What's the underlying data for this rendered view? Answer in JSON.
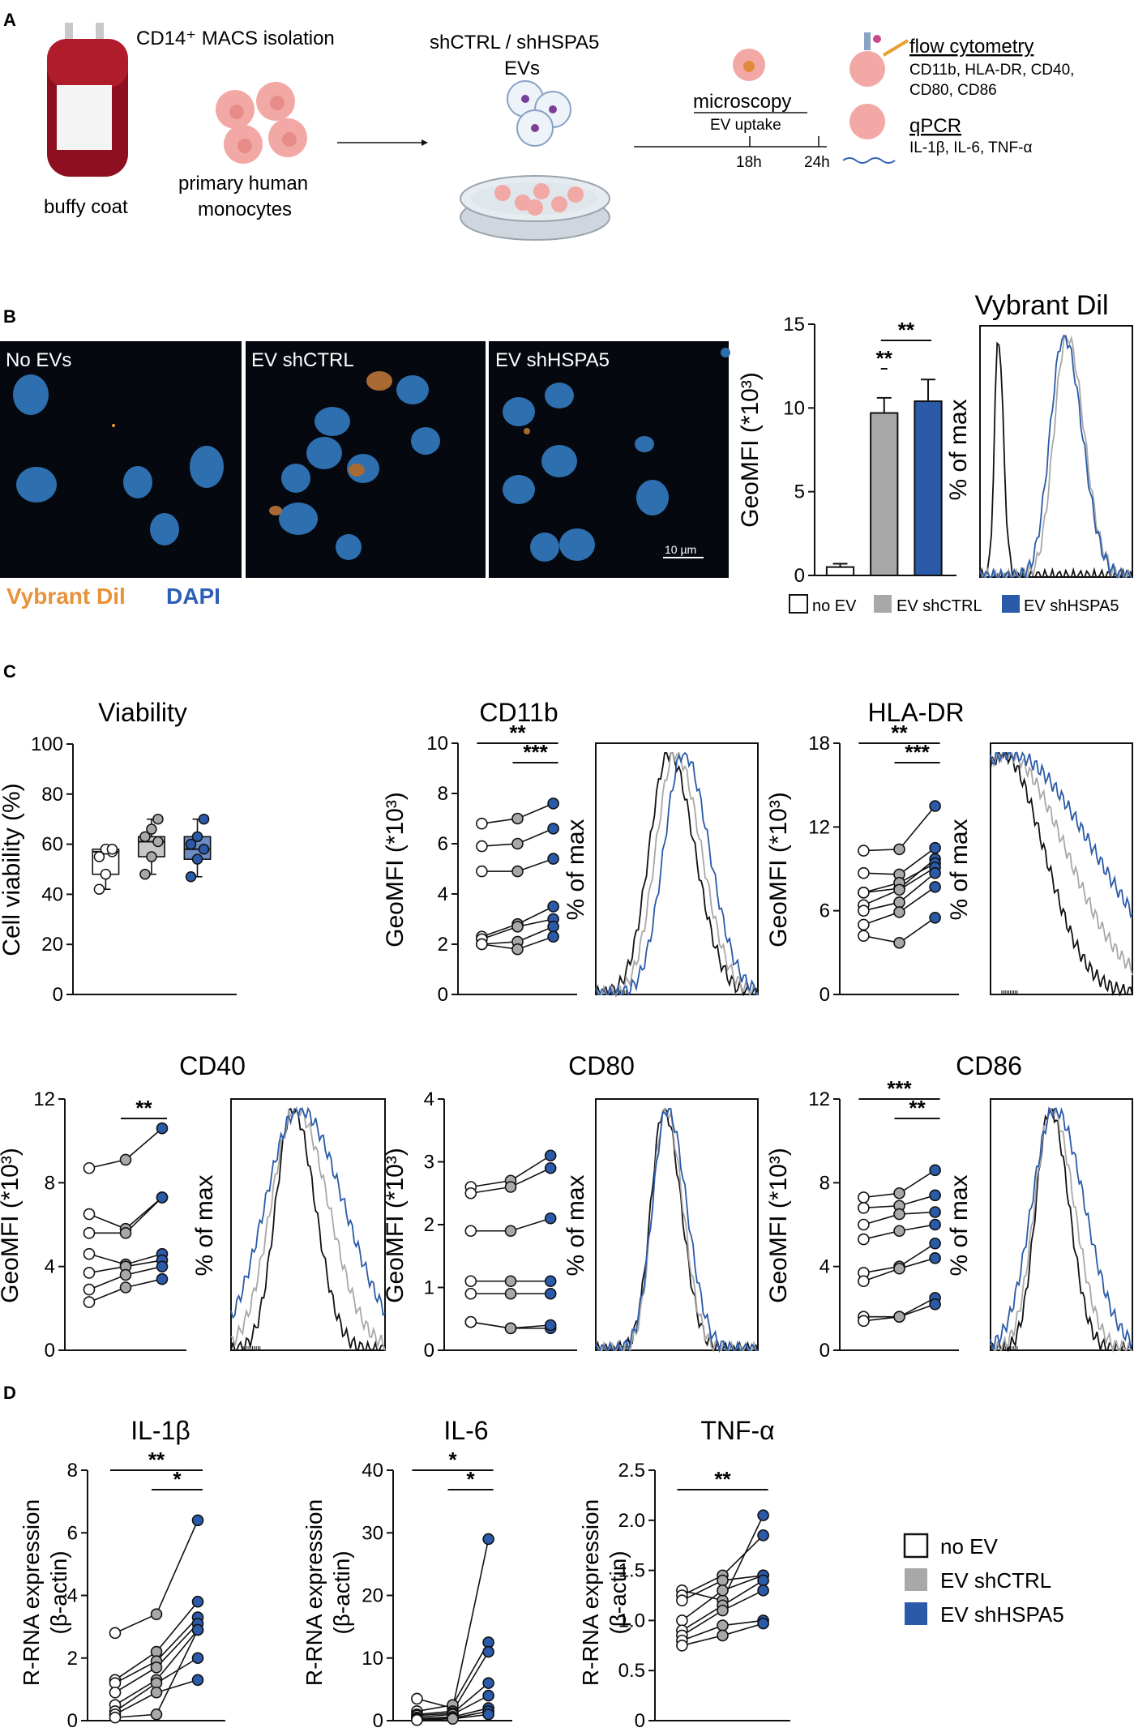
{
  "panel_letters": [
    "A",
    "B",
    "C",
    "D"
  ],
  "colors": {
    "no_ev": "#ffffff",
    "ev_shctrl": "#a8a8a8",
    "ev_shhspa5": "#2a5aa8",
    "vybrant": "#e8923a",
    "dapi": "#2d5fb4",
    "line": "#111111"
  },
  "schematic": {
    "isolation_label": "CD14⁺ MACS isolation",
    "bag_label": "buffy coat",
    "cells_label_1": "primary human",
    "cells_label_2": "monocytes",
    "ev_label_1": "shCTRL / shHSPA5",
    "ev_label_2": "EVs",
    "microscopy": "microscopy",
    "uptake": "EV uptake",
    "t18": "18h",
    "t24": "24h",
    "flow_title": "flow cytometry",
    "flow_markers_1": "CD11b, HLA-DR, CD40,",
    "flow_markers_2": "CD80, CD86",
    "qpcr_title": "qPCR",
    "qpcr_markers": "IL-1β, IL-6, TNF-α"
  },
  "micrographs": {
    "labels": [
      "No EVs",
      "EV shCTRL",
      "EV shHSPA5"
    ],
    "scale_bar": "10 µm",
    "stain_1": "Vybrant Dil",
    "stain_2": "DAPI"
  },
  "legend_b": [
    "no EV",
    "EV shCTRL",
    "EV shHSPA5"
  ],
  "legend_d": [
    "no EV",
    "EV shCTRL",
    "EV shHSPA5"
  ],
  "chart_data": [
    {
      "id": "vybrant_bar",
      "type": "bar",
      "title": "Vybrant Dil",
      "ylabel": "GeoMFI (*10³)",
      "categories": [
        "no EV",
        "EV shCTRL",
        "EV shHSPA5"
      ],
      "values": [
        0.5,
        9.7,
        10.4
      ],
      "errors": [
        0.2,
        0.9,
        1.3
      ],
      "ylim": [
        0,
        15
      ],
      "yticks": [
        0,
        5,
        10,
        15
      ],
      "significance": [
        {
          "from": 1,
          "to": 2,
          "label": "**",
          "level": 1
        },
        {
          "from": 1,
          "to": 3,
          "label": "**",
          "level": 2
        }
      ]
    },
    {
      "id": "vybrant_hist",
      "type": "area",
      "ylabel": "% of max",
      "series": [
        {
          "name": "no EV",
          "peak": 0.12,
          "width": 0.025
        },
        {
          "name": "EV shCTRL",
          "peak": 0.57,
          "width": 0.085
        },
        {
          "name": "EV shHSPA5",
          "peak": 0.55,
          "width": 0.09
        }
      ]
    },
    {
      "id": "viability",
      "type": "box",
      "title": "Viability",
      "ylabel": "Cell viability (%)",
      "ylim": [
        0,
        100
      ],
      "yticks": [
        0,
        20,
        40,
        60,
        80,
        100
      ],
      "groups": [
        {
          "name": "no EV",
          "min": 42,
          "q1": 48,
          "median": 57,
          "q3": 58,
          "max": 58,
          "points": [
            42,
            48,
            57,
            55,
            58,
            58
          ]
        },
        {
          "name": "EV shCTRL",
          "min": 48,
          "q1": 55,
          "median": 61,
          "q3": 63,
          "max": 70,
          "points": [
            48,
            55,
            61,
            63,
            66,
            70
          ]
        },
        {
          "name": "EV shHSPA5",
          "min": 47,
          "q1": 54,
          "median": 58,
          "q3": 63,
          "max": 70,
          "points": [
            47,
            54,
            58,
            60,
            63,
            70
          ]
        }
      ]
    },
    {
      "id": "cd11b",
      "type": "paired",
      "title": "CD11b",
      "ylabel": "GeoMFI (*10³)",
      "ylim": [
        0,
        10
      ],
      "yticks": [
        0,
        2,
        4,
        6,
        8,
        10
      ],
      "pairs": [
        [
          6.8,
          7.0,
          7.6
        ],
        [
          5.9,
          6.0,
          6.6
        ],
        [
          4.9,
          4.9,
          5.4
        ],
        [
          2.3,
          2.8,
          3.5
        ],
        [
          2.2,
          2.7,
          3.0
        ],
        [
          2.0,
          2.1,
          2.7
        ],
        [
          2.0,
          1.8,
          2.3
        ]
      ],
      "significance": [
        {
          "from": 1,
          "to": 3,
          "label": "**",
          "level": 2
        },
        {
          "from": 2,
          "to": 3,
          "label": "***",
          "level": 1
        }
      ]
    },
    {
      "id": "cd11b_hist",
      "type": "area",
      "ylabel": "% of max",
      "series": [
        {
          "name": "no EV",
          "peak": 0.45,
          "width": 0.12
        },
        {
          "name": "EV shCTRL",
          "peak": 0.49,
          "width": 0.12
        },
        {
          "name": "EV shHSPA5",
          "peak": 0.54,
          "width": 0.12
        }
      ]
    },
    {
      "id": "hladr",
      "type": "paired",
      "title": "HLA-DR",
      "ylabel": "GeoMFI (*10³)",
      "ylim": [
        0,
        18
      ],
      "yticks": [
        0,
        6,
        12,
        18
      ],
      "pairs": [
        [
          10.3,
          10.4,
          13.5
        ],
        [
          8.7,
          8.6,
          10.5
        ],
        [
          7.3,
          7.6,
          9.7
        ],
        [
          7.3,
          8.0,
          9.4
        ],
        [
          6.4,
          7.5,
          9.1
        ],
        [
          6.0,
          6.6,
          8.7
        ],
        [
          5.0,
          5.9,
          7.7
        ],
        [
          4.2,
          3.7,
          5.5
        ]
      ],
      "significance": [
        {
          "from": 1,
          "to": 3,
          "label": "**",
          "level": 2
        },
        {
          "from": 2,
          "to": 3,
          "label": "***",
          "level": 1
        }
      ]
    },
    {
      "id": "hladr_hist",
      "type": "area",
      "ylabel": "% of max",
      "series": [
        {
          "name": "no EV",
          "peak": 0.08,
          "width": 0.22
        },
        {
          "name": "EV shCTRL",
          "peak": 0.1,
          "width": 0.32
        },
        {
          "name": "EV shHSPA5",
          "peak": 0.12,
          "width": 0.45
        }
      ]
    },
    {
      "id": "cd40",
      "type": "paired",
      "title": "CD40",
      "ylabel": "GeoMFI (*10³)",
      "ylim": [
        0,
        12
      ],
      "yticks": [
        0,
        4,
        8,
        12
      ],
      "pairs": [
        [
          8.7,
          9.1,
          10.6
        ],
        [
          6.5,
          5.8,
          7.3
        ],
        [
          5.6,
          5.6,
          7.3
        ],
        [
          4.6,
          4.1,
          4.6
        ],
        [
          3.7,
          4.0,
          4.3
        ],
        [
          2.9,
          3.6,
          4.0
        ],
        [
          2.3,
          3.0,
          3.4
        ]
      ],
      "significance": [
        {
          "from": 2,
          "to": 3,
          "label": "**",
          "level": 1
        }
      ]
    },
    {
      "id": "cd40_hist",
      "type": "area",
      "ylabel": "% of max",
      "series": [
        {
          "name": "no EV",
          "peak": 0.4,
          "width": 0.11
        },
        {
          "name": "EV shCTRL",
          "peak": 0.42,
          "width": 0.16
        },
        {
          "name": "EV shHSPA5",
          "peak": 0.44,
          "width": 0.22
        }
      ]
    },
    {
      "id": "cd80",
      "type": "paired",
      "title": "CD80",
      "ylabel": "GeoMFI (*10³)",
      "ylim": [
        0,
        4
      ],
      "yticks": [
        0,
        1,
        2,
        3,
        4
      ],
      "pairs": [
        [
          2.6,
          2.7,
          3.1
        ],
        [
          2.5,
          2.6,
          2.9
        ],
        [
          1.9,
          1.9,
          2.1
        ],
        [
          1.1,
          1.1,
          1.1
        ],
        [
          0.9,
          0.9,
          0.9
        ],
        [
          0.45,
          0.35,
          0.35
        ],
        [
          0.45,
          0.35,
          0.4
        ]
      ],
      "significance": []
    },
    {
      "id": "cd80_hist",
      "type": "area",
      "ylabel": "% of max",
      "series": [
        {
          "name": "no EV",
          "peak": 0.42,
          "width": 0.08
        },
        {
          "name": "EV shCTRL",
          "peak": 0.43,
          "width": 0.08
        },
        {
          "name": "EV shHSPA5",
          "peak": 0.44,
          "width": 0.09
        }
      ]
    },
    {
      "id": "cd86",
      "type": "paired",
      "title": "CD86",
      "ylabel": "GeoMFI (*10³)",
      "ylim": [
        0,
        12
      ],
      "yticks": [
        0,
        4,
        8,
        12
      ],
      "pairs": [
        [
          7.3,
          7.5,
          8.6
        ],
        [
          6.8,
          6.9,
          7.4
        ],
        [
          6.0,
          6.5,
          6.6
        ],
        [
          5.3,
          5.7,
          6.0
        ],
        [
          3.7,
          4.0,
          5.1
        ],
        [
          3.3,
          3.9,
          4.4
        ],
        [
          1.6,
          1.6,
          2.5
        ],
        [
          1.4,
          1.6,
          2.2
        ]
      ],
      "significance": [
        {
          "from": 1,
          "to": 3,
          "label": "***",
          "level": 2
        },
        {
          "from": 2,
          "to": 3,
          "label": "**",
          "level": 1
        }
      ]
    },
    {
      "id": "cd86_hist",
      "type": "area",
      "ylabel": "% of max",
      "series": [
        {
          "name": "no EV",
          "peak": 0.42,
          "width": 0.1
        },
        {
          "name": "EV shCTRL",
          "peak": 0.43,
          "width": 0.12
        },
        {
          "name": "EV shHSPA5",
          "peak": 0.45,
          "width": 0.16
        }
      ]
    },
    {
      "id": "il1b",
      "type": "paired",
      "title": "IL-1β",
      "ylabel": "R-RNA expression (β-actin)",
      "ylim": [
        0,
        8
      ],
      "yticks": [
        0,
        2,
        4,
        6,
        8
      ],
      "pairs": [
        [
          2.8,
          3.4,
          6.4
        ],
        [
          1.3,
          2.2,
          3.8
        ],
        [
          1.2,
          1.9,
          3.3
        ],
        [
          0.9,
          1.7,
          3.1
        ],
        [
          0.5,
          1.3,
          2.9
        ],
        [
          0.3,
          1.2,
          2.0
        ],
        [
          0.2,
          0.9,
          1.3
        ],
        [
          0.1,
          0.2,
          2.9
        ]
      ],
      "significance": [
        {
          "from": 1,
          "to": 3,
          "label": "**",
          "level": 2
        },
        {
          "from": 2,
          "to": 3,
          "label": "*",
          "level": 1
        }
      ]
    },
    {
      "id": "il6",
      "type": "paired",
      "title": "IL-6",
      "ylabel": "R-RNA expression (β-actin)",
      "ylim": [
        0,
        40
      ],
      "yticks": [
        0,
        10,
        20,
        30,
        40
      ],
      "pairs": [
        [
          3.5,
          2.0,
          29.0
        ],
        [
          1.5,
          2.5,
          12.5
        ],
        [
          1.0,
          1.5,
          11.0
        ],
        [
          0.8,
          1.2,
          6.0
        ],
        [
          0.5,
          1.0,
          4.0
        ],
        [
          0.3,
          0.6,
          2.0
        ],
        [
          0.2,
          0.4,
          1.5
        ],
        [
          0.1,
          0.3,
          1.0
        ]
      ],
      "significance": [
        {
          "from": 1,
          "to": 3,
          "label": "*",
          "level": 2
        },
        {
          "from": 2,
          "to": 3,
          "label": "*",
          "level": 1
        }
      ]
    },
    {
      "id": "tnfa",
      "type": "paired",
      "title": "TNF-α",
      "ylabel": "R-RNA expression (β-actin)",
      "ylim": [
        0,
        2.5
      ],
      "yticks": [
        "0",
        "0.5",
        "1.0",
        "1.5",
        "2.0",
        "2.5"
      ],
      "pairs": [
        [
          1.3,
          1.2,
          2.05
        ],
        [
          1.25,
          1.45,
          1.85
        ],
        [
          1.2,
          1.4,
          1.45
        ],
        [
          1.0,
          1.3,
          1.45
        ],
        [
          0.9,
          1.15,
          1.4
        ],
        [
          0.85,
          1.1,
          1.3
        ],
        [
          0.8,
          0.95,
          1.0
        ],
        [
          0.75,
          0.85,
          0.97
        ]
      ],
      "significance": [
        {
          "from": 1,
          "to": 3,
          "label": "**",
          "level": 1
        }
      ]
    }
  ]
}
